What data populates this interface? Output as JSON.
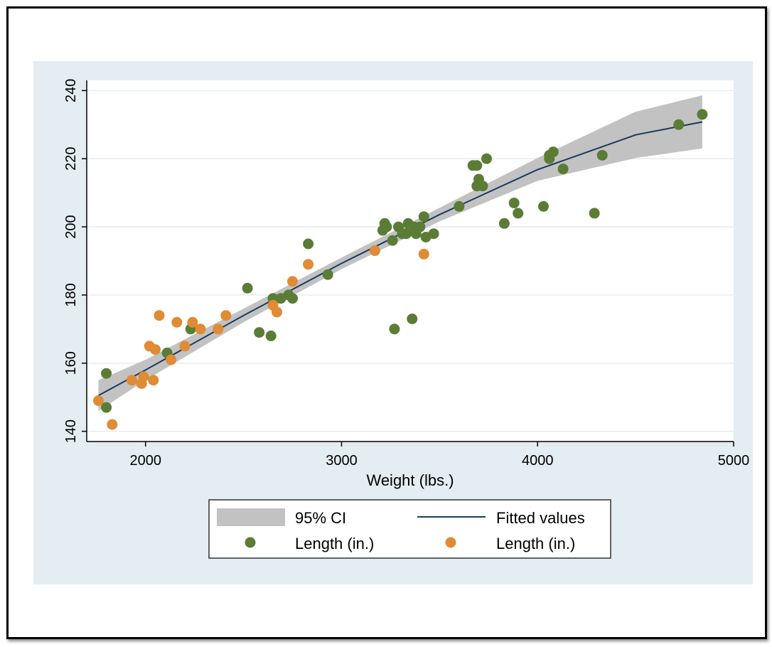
{
  "chart_data": {
    "type": "scatter",
    "title": "",
    "xlabel": "Weight (lbs.)",
    "ylabel": "",
    "xlim": [
      1700,
      5000
    ],
    "ylim": [
      137,
      243
    ],
    "x_ticks": [
      "2000",
      "3000",
      "4000",
      "5000"
    ],
    "y_ticks": [
      "140",
      "160",
      "180",
      "200",
      "220",
      "240"
    ],
    "grid": "horizontal",
    "legend_position": "bottom",
    "colors": {
      "page_background": "#e4edf1",
      "plot_background": "#ffffff",
      "ci_band": "#c2c2c2",
      "fitted_line": "#1b3a5f",
      "series_green": "#5b7c35",
      "series_orange": "#e08b35"
    },
    "legend": {
      "ci_label": "95% CI",
      "fit_label": "Fitted values",
      "green_label": "Length (in.)",
      "orange_label": "Length (in.)"
    },
    "fit": {
      "x": [
        1760,
        2000,
        2500,
        3000,
        3500,
        4000,
        4500,
        4840
      ],
      "y": [
        150.5,
        158,
        174,
        189.3,
        203.6,
        216.8,
        227,
        230.8
      ],
      "ci_lower": [
        146,
        155,
        172,
        187.6,
        201.6,
        213.5,
        220.2,
        223
      ]
    },
    "ci_upper": [
      155,
      161,
      176,
      191,
      205.6,
      220.2,
      233.8,
      238.6
    ],
    "series": [
      {
        "name": "Length (in.)",
        "color": "#5b7c35",
        "points": [
          [
            1800,
            157
          ],
          [
            1800,
            147
          ],
          [
            2110,
            163
          ],
          [
            2230,
            170
          ],
          [
            2520,
            182
          ],
          [
            2580,
            169
          ],
          [
            2640,
            168
          ],
          [
            2650,
            179
          ],
          [
            2690,
            179
          ],
          [
            2730,
            180
          ],
          [
            2750,
            179
          ],
          [
            2830,
            195
          ],
          [
            2930,
            186
          ],
          [
            3210,
            199
          ],
          [
            3220,
            201
          ],
          [
            3230,
            200
          ],
          [
            3260,
            196
          ],
          [
            3270,
            170
          ],
          [
            3290,
            200
          ],
          [
            3310,
            198
          ],
          [
            3330,
            198
          ],
          [
            3340,
            201
          ],
          [
            3360,
            173
          ],
          [
            3370,
            200
          ],
          [
            3380,
            198
          ],
          [
            3400,
            200
          ],
          [
            3420,
            203
          ],
          [
            3430,
            197
          ],
          [
            3470,
            198
          ],
          [
            3600,
            206
          ],
          [
            3670,
            218
          ],
          [
            3690,
            218
          ],
          [
            3690,
            212
          ],
          [
            3700,
            214
          ],
          [
            3720,
            212
          ],
          [
            3740,
            220
          ],
          [
            3830,
            201
          ],
          [
            3880,
            207
          ],
          [
            3900,
            204
          ],
          [
            4030,
            206
          ],
          [
            4060,
            220
          ],
          [
            4060,
            221
          ],
          [
            4080,
            222
          ],
          [
            4130,
            217
          ],
          [
            4290,
            204
          ],
          [
            4330,
            221
          ],
          [
            4720,
            230
          ],
          [
            4840,
            233
          ]
        ]
      },
      {
        "name": "Length (in.)",
        "color": "#e08b35",
        "points": [
          [
            1760,
            149
          ],
          [
            1830,
            142
          ],
          [
            1930,
            155
          ],
          [
            1980,
            154
          ],
          [
            1990,
            156
          ],
          [
            2020,
            165
          ],
          [
            2040,
            155
          ],
          [
            2050,
            164
          ],
          [
            2070,
            174
          ],
          [
            2130,
            161
          ],
          [
            2160,
            172
          ],
          [
            2200,
            165
          ],
          [
            2240,
            172
          ],
          [
            2280,
            170
          ],
          [
            2370,
            170
          ],
          [
            2410,
            174
          ],
          [
            2650,
            177
          ],
          [
            2670,
            175
          ],
          [
            2750,
            184
          ],
          [
            2830,
            189
          ],
          [
            3170,
            193
          ],
          [
            3420,
            192
          ]
        ]
      }
    ]
  }
}
